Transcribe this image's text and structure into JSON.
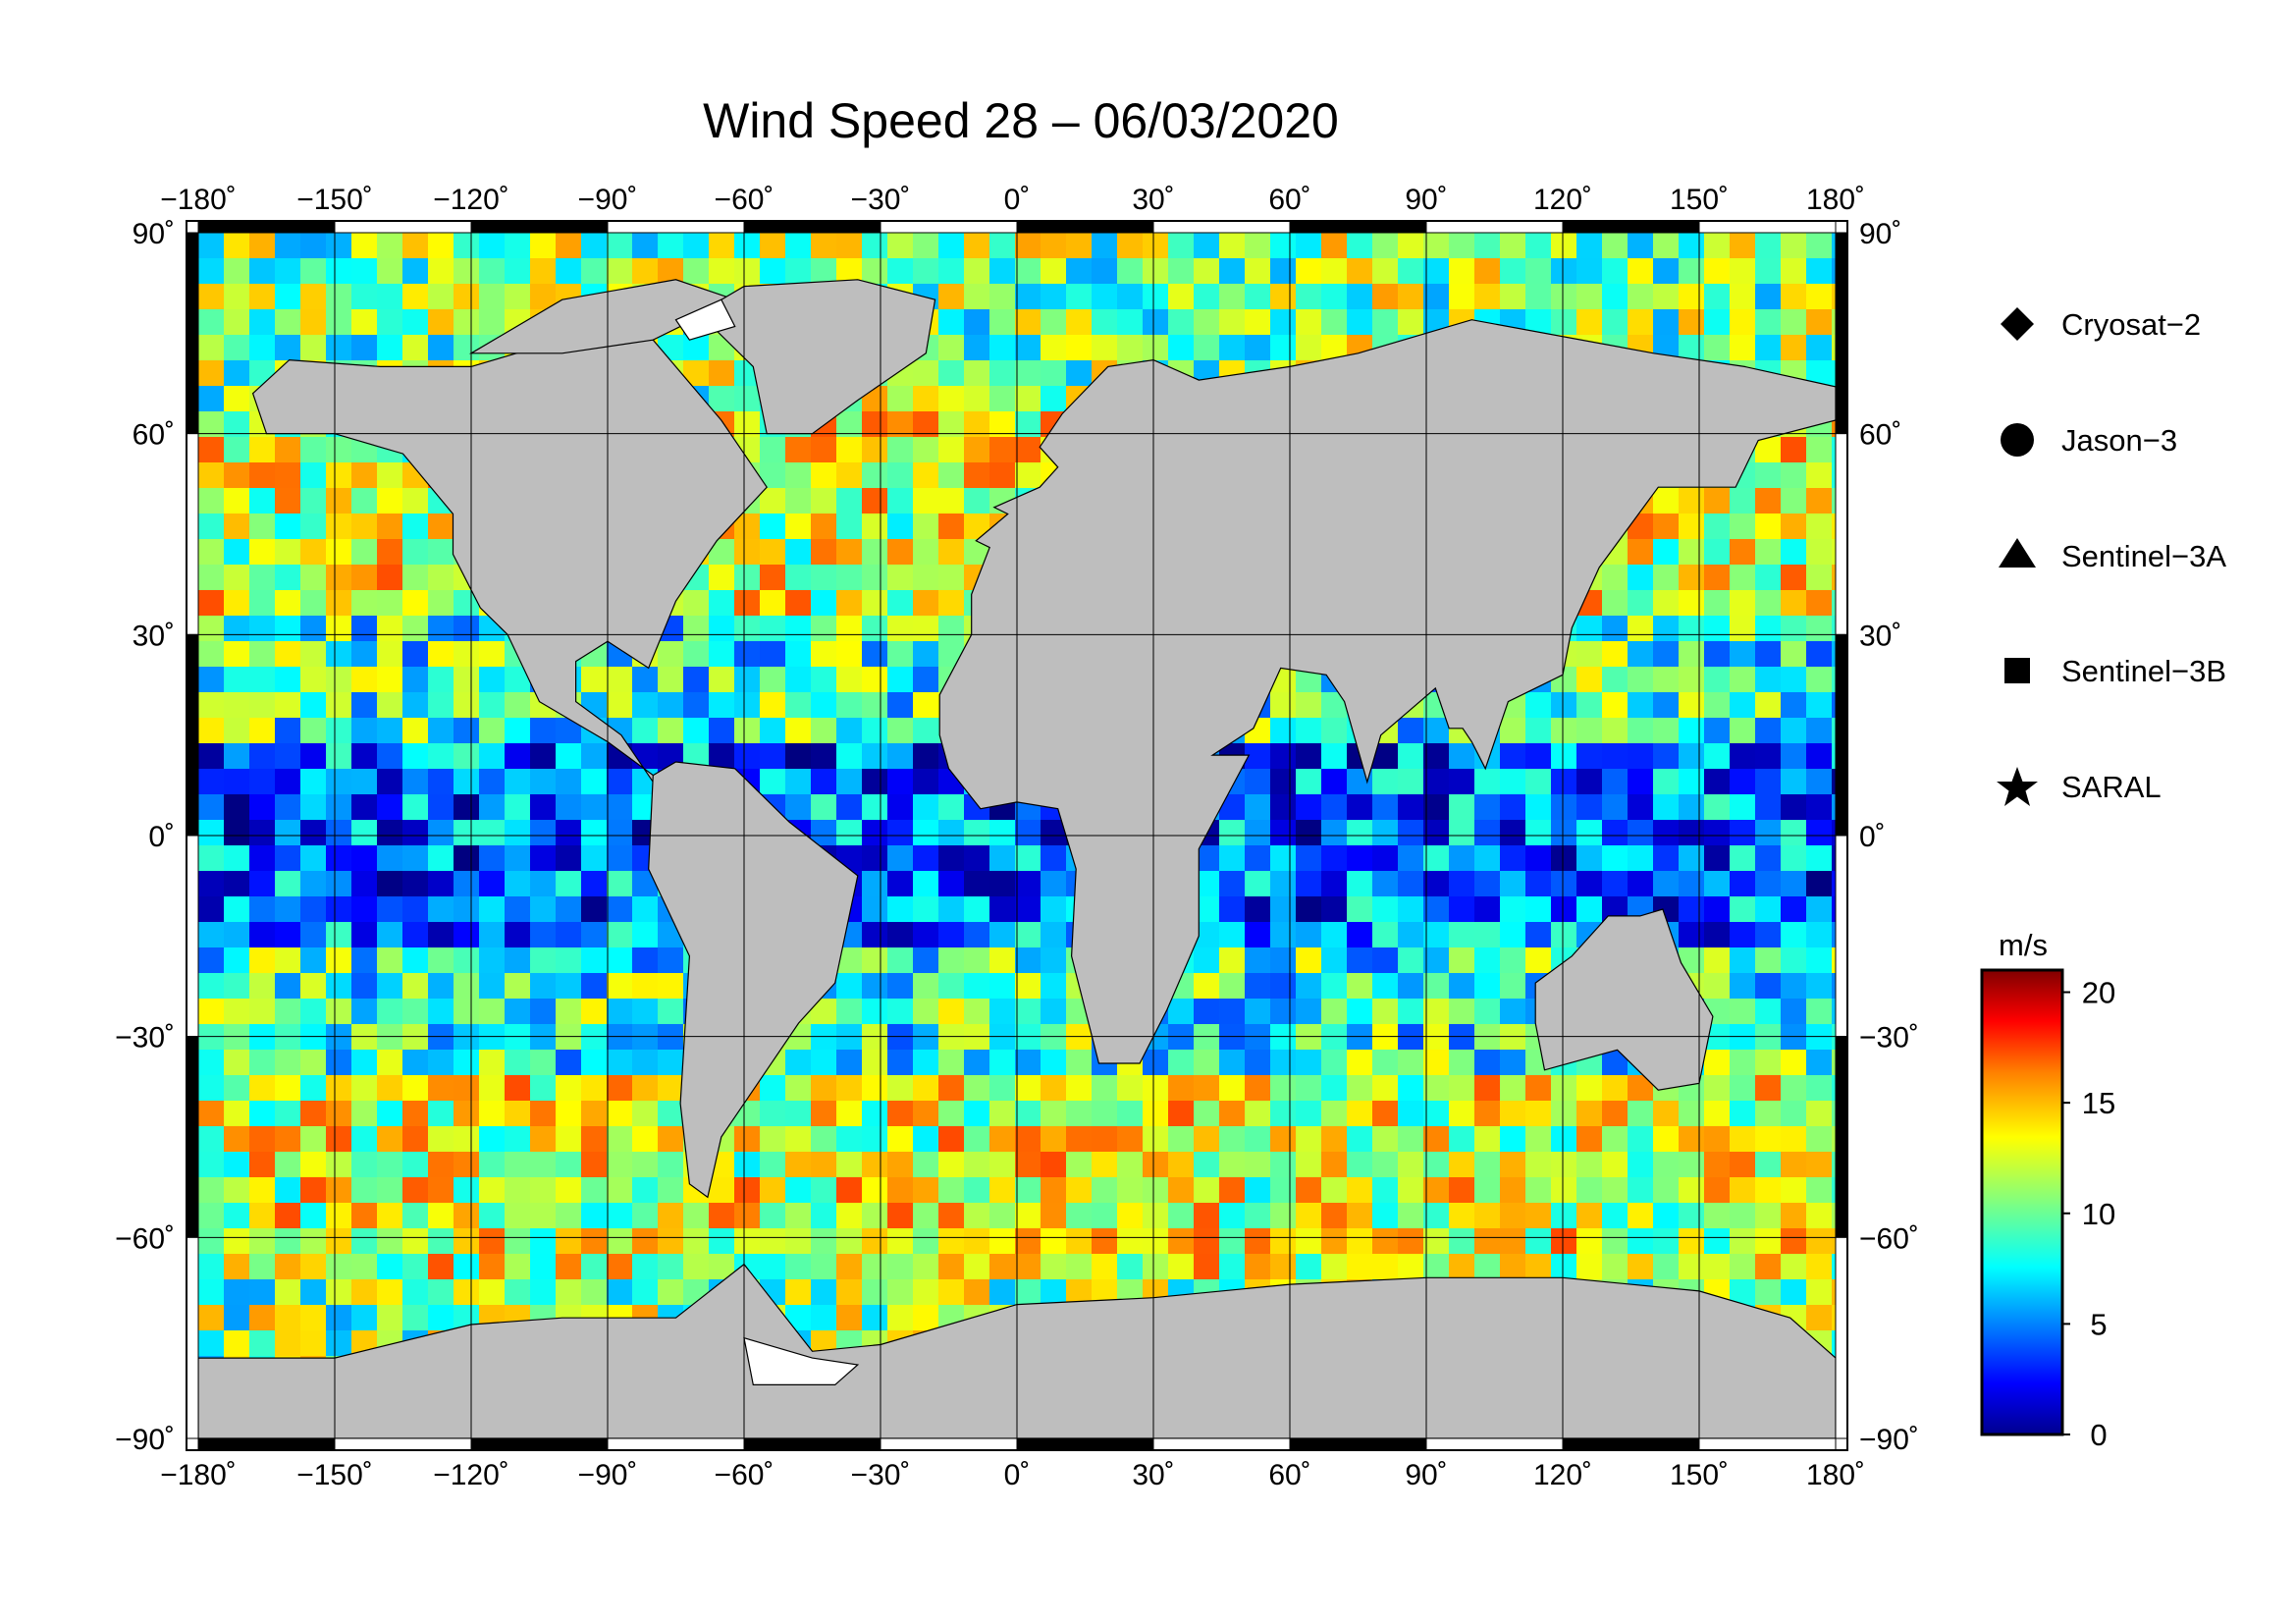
{
  "title": "Wind Speed 28 – 06/03/2020",
  "map": {
    "projection": "equirectangular",
    "lon_range": [
      -180,
      180
    ],
    "lat_range": [
      -90,
      90
    ],
    "lon_ticks": [
      -180,
      -150,
      -120,
      -90,
      -60,
      -30,
      0,
      30,
      60,
      90,
      120,
      150,
      180
    ],
    "lat_ticks": [
      90,
      60,
      30,
      0,
      -30,
      -60,
      -90
    ],
    "lon_tick_labels": [
      "−180˚",
      "−150˚",
      "−120˚",
      "−90˚",
      "−60˚",
      "−30˚",
      "0˚",
      "30˚",
      "60˚",
      "90˚",
      "120˚",
      "150˚",
      "180˚"
    ],
    "lat_tick_labels_left": [
      "90˚",
      "60˚",
      "30˚",
      "0˚",
      "−30˚",
      "−60˚",
      "−90˚"
    ],
    "lat_tick_labels_right": [
      "90˚",
      "60˚",
      "30˚",
      "0˚",
      "−30˚",
      "−60˚",
      "−90˚"
    ],
    "grid": true,
    "land_color": "#bebebe",
    "ice_color": "#ffffff",
    "frame_color": "#000000"
  },
  "legend": {
    "placement": "right",
    "items": [
      {
        "label": "Cryosat−2",
        "marker": "diamond"
      },
      {
        "label": "Jason−3",
        "marker": "circle"
      },
      {
        "label": "Sentinel−3A",
        "marker": "triangle"
      },
      {
        "label": "Sentinel−3B",
        "marker": "square"
      },
      {
        "label": "SARAL",
        "marker": "star"
      }
    ]
  },
  "colorbar": {
    "unit": "m/s",
    "min": 0,
    "max": 21,
    "ticks": [
      0,
      5,
      10,
      15,
      20
    ],
    "tick_labels": [
      "0",
      "5",
      "10",
      "15",
      "20"
    ],
    "colormap": "jet",
    "colors": [
      "#00008f",
      "#0000ff",
      "#0080ff",
      "#00ffff",
      "#80ff80",
      "#ffff00",
      "#ff8000",
      "#ff0000",
      "#800000"
    ]
  }
}
